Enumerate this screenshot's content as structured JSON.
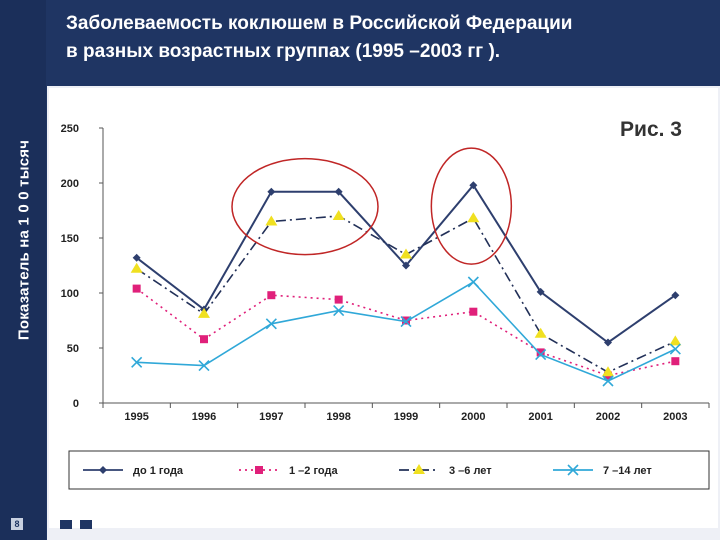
{
  "slide": {
    "title_line1": "Заболеваемость коклюшем в Российской Федерации",
    "title_line2": "в разных возрастных группах (1995 –2003 гг ).",
    "side_label": "Показатель на 1 0 0 тысяч",
    "figure_label": "Рис. 3",
    "slide_number": "8"
  },
  "colors": {
    "background": "#1f3563",
    "panel": "#ffffff"
  },
  "chart_data": {
    "type": "line",
    "title": "Заболеваемость коклюшем в Российской Федерации в разных возрастных группах (1995 –2003 гг ).",
    "xlabel": "",
    "ylabel": "Показатель на 1 0 0 тысяч",
    "ylim": [
      0,
      250
    ],
    "yticks": [
      0,
      50,
      100,
      150,
      200,
      250
    ],
    "categories": [
      "1995",
      "1996",
      "1997",
      "1998",
      "1999",
      "2000",
      "2001",
      "2002",
      "2003"
    ],
    "series": [
      {
        "name": "до 1 года",
        "color": "#2e3f6e",
        "marker": "diamond",
        "dash": "",
        "values": [
          132,
          85,
          192,
          192,
          125,
          198,
          101,
          55,
          98
        ]
      },
      {
        "name": "1 –2 года",
        "color": "#e0207a",
        "marker": "square",
        "dash": "2,4",
        "values": [
          104,
          58,
          98,
          94,
          75,
          83,
          46,
          25,
          38
        ]
      },
      {
        "name": "3 –6 лет",
        "color": "#223058",
        "marker": "triangle",
        "dash": "10,4,2,4",
        "values": [
          122,
          81,
          165,
          170,
          135,
          168,
          63,
          28,
          56
        ]
      },
      {
        "name": "7 –14 лет",
        "color": "#30a8d8",
        "marker": "x",
        "dash": "",
        "values": [
          37,
          34,
          72,
          84,
          74,
          110,
          44,
          20,
          49
        ]
      }
    ],
    "annotations": [
      "red ellipse around 1997–1998 peak",
      "red ellipse around 2000 peak"
    ],
    "legend_position": "bottom"
  }
}
